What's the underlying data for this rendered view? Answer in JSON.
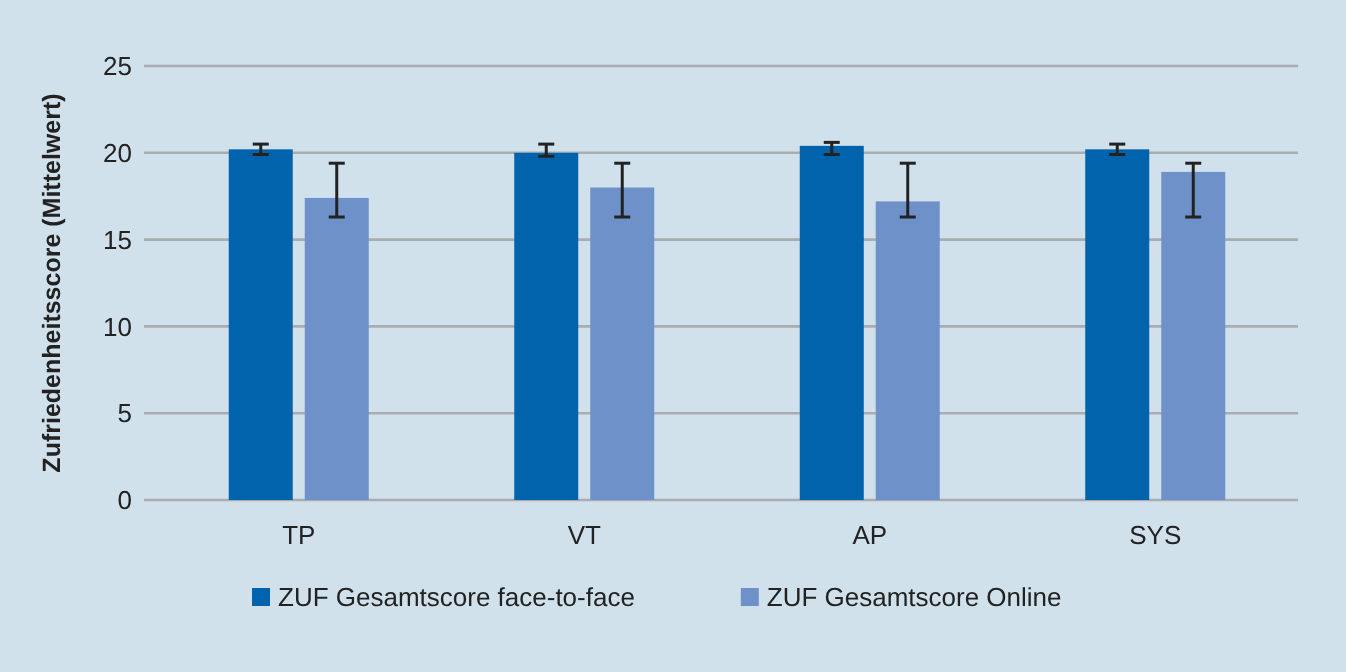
{
  "chart_data": {
    "type": "bar",
    "ylabel": "Zufriedenheitsscore (Mittelwert)",
    "categories": [
      "TP",
      "VT",
      "AP",
      "SYS"
    ],
    "series": [
      {
        "name": "ZUF Gesamtscore face-to-face",
        "color": "#0063ac",
        "values": [
          20.2,
          20.0,
          20.4,
          20.2
        ],
        "errors": [
          [
            19.9,
            20.5
          ],
          [
            19.8,
            20.5
          ],
          [
            19.9,
            20.6
          ],
          [
            19.9,
            20.5
          ]
        ]
      },
      {
        "name": "ZUF Gesamtscore Online",
        "color": "#6d91c8",
        "values": [
          17.4,
          18.0,
          17.2,
          18.9
        ],
        "errors": [
          [
            16.3,
            19.4
          ],
          [
            16.3,
            19.4
          ],
          [
            16.3,
            19.4
          ],
          [
            16.3,
            19.4
          ]
        ]
      }
    ],
    "ylim": [
      0,
      25
    ],
    "yticks": [
      0,
      5,
      10,
      15,
      20,
      25
    ],
    "grid": "y",
    "legend": "bottom"
  }
}
